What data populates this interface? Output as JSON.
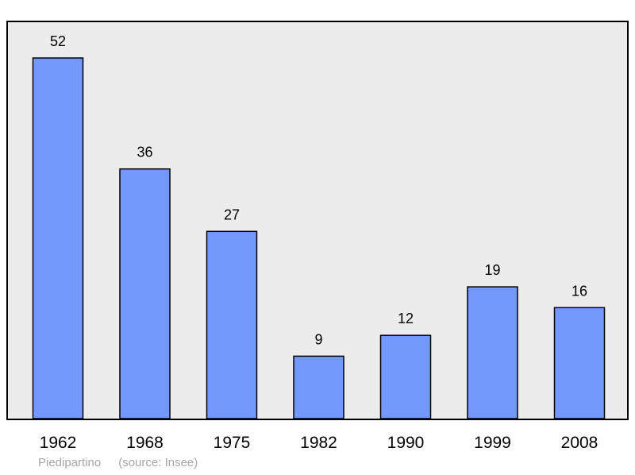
{
  "chart_data": {
    "type": "bar",
    "categories": [
      "1962",
      "1968",
      "1975",
      "1982",
      "1990",
      "1999",
      "2008"
    ],
    "values": [
      52,
      36,
      27,
      9,
      12,
      19,
      16
    ],
    "title": "",
    "xlabel": "",
    "ylabel": "",
    "ylim": [
      0,
      52
    ],
    "grid": false,
    "bar_color": "#7399ff",
    "background_color": "#ececec"
  },
  "footer": {
    "place": "Piedipartino",
    "source": "(source: Insee)"
  }
}
